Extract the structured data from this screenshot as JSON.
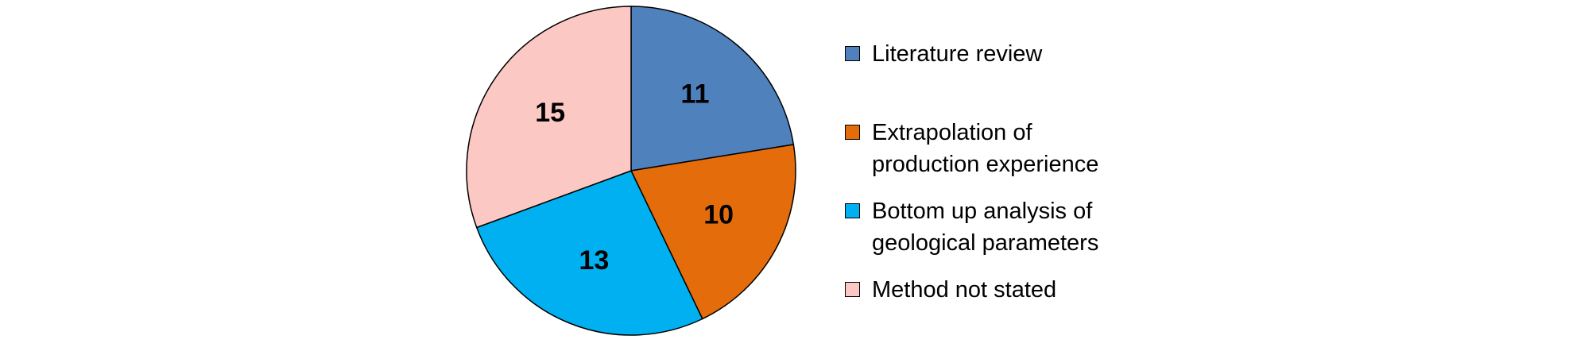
{
  "chart_data": {
    "type": "pie",
    "categories": [
      "Literature review",
      "Extrapolation of\nproduction experience",
      "Bottom up analysis of\ngeological parameters",
      "Method not stated"
    ],
    "values": [
      11,
      10,
      13,
      15
    ],
    "colors": [
      "#4f81bd",
      "#e46c0a",
      "#00b0f0",
      "#fcc8c4"
    ]
  }
}
